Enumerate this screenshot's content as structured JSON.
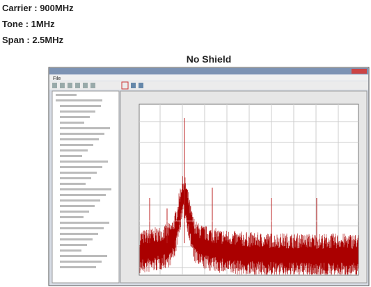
{
  "header": {
    "carrier": "Carrier : 900MHz",
    "tone": "Tone : 1MHz",
    "span": "Span : 2.5MHz"
  },
  "figure": {
    "title": "No Shield",
    "menu": "File"
  }
}
